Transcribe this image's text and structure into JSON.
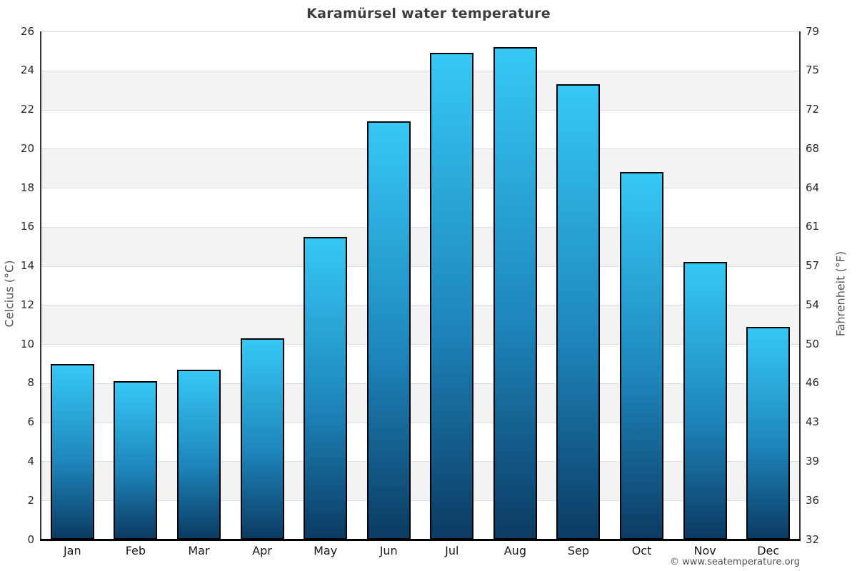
{
  "page": {
    "title": "Karamürsel water temperature",
    "footer": "© www.seatemperature.org"
  },
  "chart_data": {
    "type": "bar",
    "title": "Karamürsel water temperature",
    "categories": [
      "Jan",
      "Feb",
      "Mar",
      "Apr",
      "May",
      "Jun",
      "Jul",
      "Aug",
      "Sep",
      "Oct",
      "Nov",
      "Dec"
    ],
    "values": [
      9.0,
      8.1,
      8.7,
      10.3,
      15.5,
      21.4,
      24.9,
      25.2,
      23.3,
      18.8,
      14.2,
      10.9
    ],
    "series_name": "Water temperature (°C)",
    "xlabel": "",
    "ylabel_left": "Celcius (°C)",
    "ylabel_right": "Fahrenheit (°F)",
    "ylim": [
      0,
      26
    ],
    "ytick_step": 2,
    "yticks_left": [
      0,
      2,
      4,
      6,
      8,
      10,
      12,
      14,
      16,
      18,
      20,
      22,
      24,
      26
    ],
    "yticks_right_labels": [
      "32",
      "36",
      "39",
      "43",
      "46",
      "50",
      "54",
      "57",
      "61",
      "64",
      "68",
      "72",
      "75",
      "79"
    ],
    "legend": "none",
    "grid": "horizontal-banded",
    "colors": {
      "bar_top": "#36c8f6",
      "bar_bottom": "#0b3b63",
      "bar_border": "#000000",
      "band_fill": "#f3f3f3",
      "gridline": "#dedede",
      "axis": "#333333",
      "title_text": "#3d3d3d",
      "tick_text": "#2a2a2a"
    }
  }
}
